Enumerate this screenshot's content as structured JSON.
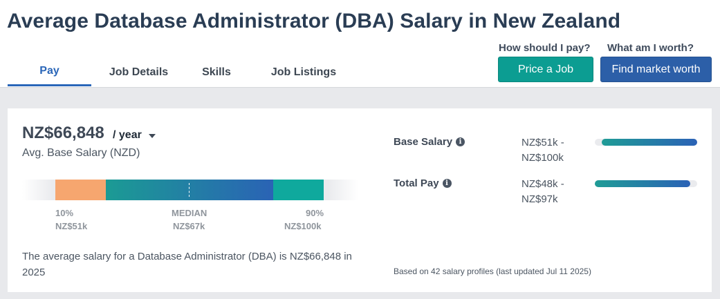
{
  "page": {
    "title": "Average Database Administrator (DBA) Salary in New Zealand"
  },
  "tabs": [
    {
      "label": "Pay",
      "active": true
    },
    {
      "label": "Job Details",
      "active": false
    },
    {
      "label": "Skills",
      "active": false
    },
    {
      "label": "Job Listings",
      "active": false
    }
  ],
  "cta": {
    "pay_question": "How should I pay?",
    "worth_question": "What am I worth?",
    "price_job_label": "Price a Job",
    "market_worth_label": "Find market worth"
  },
  "salary": {
    "value": "NZ$66,848",
    "period": "/ year",
    "caption": "Avg. Base Salary (NZD)",
    "percentiles": {
      "p10_label": "10%",
      "p10_value": "NZ$51k",
      "median_label": "MEDIAN",
      "median_value": "NZ$67k",
      "p90_label": "90%",
      "p90_value": "NZ$100k"
    },
    "summary": "The average salary for a Database Administrator (DBA) is NZ$66,848 in 2025"
  },
  "compensation": {
    "base": {
      "label": "Base Salary",
      "range": "NZ$51k - NZ$100k",
      "bar_start_fraction": 0.07,
      "bar_end_fraction": 1.0
    },
    "total": {
      "label": "Total Pay",
      "range": "NZ$48k - NZ$97k",
      "bar_start_fraction": 0.0,
      "bar_end_fraction": 0.93
    },
    "footnote": "Based on 42 salary profiles (last updated Jul 11 2025)"
  },
  "colors": {
    "accent_blue": "#2a66b8",
    "teal": "#0c9d92",
    "navy_button": "#2c5fa8",
    "percentile_low": "#f6a66f",
    "percentile_high": "#0fa99d"
  },
  "icons": {
    "info": "info-icon",
    "dropdown": "caret-down-icon"
  }
}
